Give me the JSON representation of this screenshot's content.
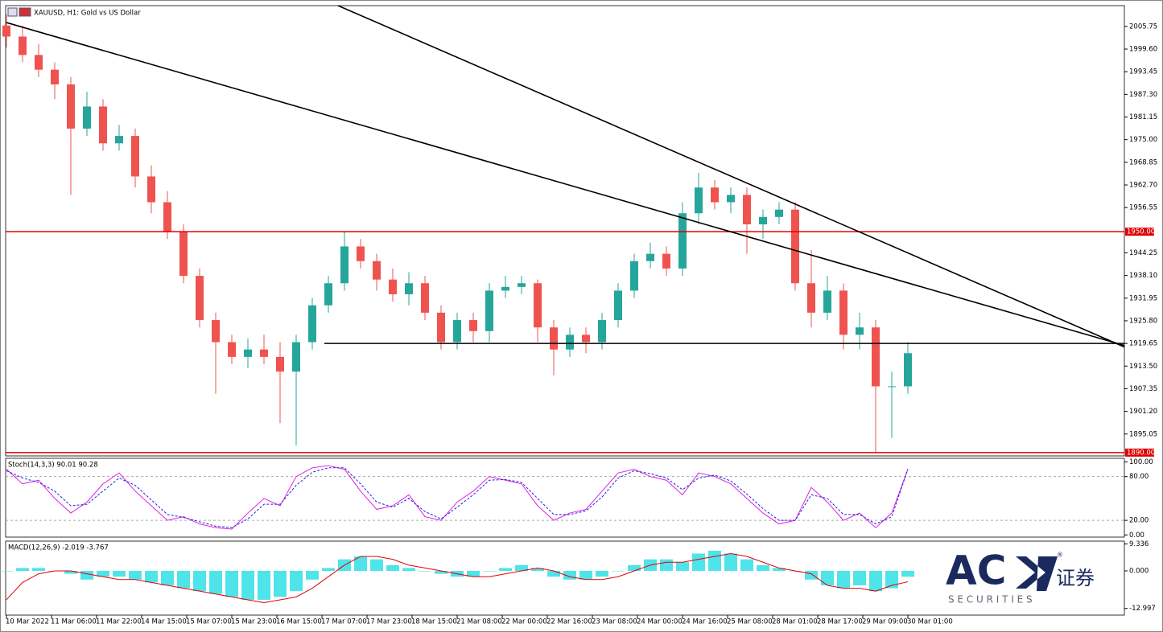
{
  "chart_data": [
    {
      "type": "candlestick",
      "title": "XAUUSD, H1:  Gold vs US Dollar",
      "xtick_labels": [
        "10 Mar 2022",
        "11 Mar 06:00",
        "11 Mar 22:00",
        "14 Mar 15:00",
        "15 Mar 07:00",
        "15 Mar 23:00",
        "16 Mar 15:00",
        "17 Mar 07:00",
        "17 Mar 23:00",
        "18 Mar 15:00",
        "21 Mar 08:00",
        "22 Mar 00:00",
        "22 Mar 16:00",
        "23 Mar 08:00",
        "24 Mar 00:00",
        "24 Mar 16:00",
        "25 Mar 08:00",
        "28 Mar 01:00",
        "28 Mar 17:00",
        "29 Mar 09:00",
        "30 Mar 01:00"
      ],
      "open": [
        2006,
        2003,
        1998,
        1994,
        1990,
        1978,
        1984,
        1974,
        1976,
        1965,
        1958,
        1950,
        1938,
        1926,
        1920,
        1916,
        1918,
        1916,
        1912,
        1920,
        1930,
        1936,
        1946,
        1942,
        1937,
        1933,
        1936,
        1928,
        1920,
        1926,
        1923,
        1934,
        1935,
        1936,
        1924,
        1918,
        1922,
        1920,
        1926,
        1934,
        1942,
        1944,
        1940,
        1955,
        1962,
        1958,
        1960,
        1952,
        1954,
        1956,
        1936,
        1928,
        1934,
        1922,
        1924,
        1908,
        1908
      ],
      "high": [
        2009,
        2006,
        2001,
        1996,
        1992,
        1988,
        1986,
        1979,
        1978,
        1968,
        1961,
        1952,
        1940,
        1928,
        1922,
        1921,
        1922,
        1920,
        1922,
        1932,
        1938,
        1950,
        1948,
        1944,
        1940,
        1939,
        1938,
        1930,
        1928,
        1928,
        1936,
        1938,
        1938,
        1937,
        1926,
        1924,
        1924,
        1928,
        1936,
        1944,
        1947,
        1946,
        1958,
        1966,
        1964,
        1962,
        1962,
        1956,
        1958,
        1958,
        1945,
        1938,
        1936,
        1928,
        1926,
        1912,
        1920
      ],
      "low": [
        2000,
        1996,
        1992,
        1986,
        1960,
        1976,
        1972,
        1972,
        1962,
        1955,
        1948,
        1936,
        1924,
        1906,
        1914,
        1913,
        1914,
        1898,
        1892,
        1918,
        1928,
        1934,
        1940,
        1934,
        1931,
        1930,
        1926,
        1918,
        1918,
        1920,
        1920,
        1932,
        1933,
        1920,
        1911,
        1916,
        1917,
        1918,
        1924,
        1932,
        1940,
        1938,
        1938,
        1952,
        1956,
        1955,
        1944,
        1948,
        1952,
        1934,
        1924,
        1926,
        1918,
        1918,
        1890,
        1894,
        1906
      ],
      "close": [
        2003,
        1998,
        1994,
        1990,
        1978,
        1984,
        1974,
        1976,
        1965,
        1958,
        1950,
        1938,
        1926,
        1920,
        1916,
        1918,
        1916,
        1912,
        1920,
        1930,
        1936,
        1946,
        1942,
        1937,
        1933,
        1936,
        1928,
        1920,
        1926,
        1923,
        1934,
        1935,
        1936,
        1924,
        1918,
        1922,
        1920,
        1926,
        1934,
        1942,
        1944,
        1940,
        1955,
        1962,
        1958,
        1960,
        1952,
        1954,
        1956,
        1936,
        1928,
        1934,
        1922,
        1924,
        1908,
        1908,
        1917
      ],
      "up_color": "#26a69a",
      "down_color": "#ef5350",
      "ylim": [
        1889.1,
        2011.4
      ],
      "yticks": [
        2005.75,
        {
          "value": 1999.6,
          "label": "1999.60"
        },
        1993.45,
        {
          "value": 1987.3,
          "label": "1987.30"
        },
        1981.15,
        {
          "value": 1975,
          "label": "1975.00"
        },
        1968.85,
        {
          "value": 1962.7,
          "label": "1962.70"
        },
        1956.55,
        1944.25,
        {
          "value": 1938.1,
          "label": "1938.10"
        },
        1931.95,
        {
          "value": 1925.8,
          "label": "1925.80"
        },
        1919.65,
        {
          "value": 1913.5,
          "label": "1913.50"
        },
        1907.35,
        {
          "value": 1901.2,
          "label": "1901.20"
        },
        1895.05
      ],
      "levels": [
        {
          "value": 1950,
          "label": "1950.00",
          "color": "#e00000"
        },
        {
          "value": 1890,
          "label": "1890.00",
          "color": "#e00000"
        }
      ],
      "trendlines": [
        {
          "x": [
            0,
            69.45
          ],
          "y": [
            2006.8,
            1919.1
          ],
          "color": "#000000"
        },
        {
          "x": [
            20.6,
            69.45
          ],
          "y": [
            2011.4,
            1918.7
          ],
          "color": "#000000"
        },
        {
          "x": [
            19.75,
            69.45
          ],
          "y": [
            1919.65,
            1919.65
          ],
          "color": "#000000"
        }
      ]
    },
    {
      "type": "line",
      "title": "Stoch(14,3,3) 90.01 90.28",
      "ylim": [
        -3,
        105
      ],
      "yticks": [
        {
          "value": 100,
          "label": "100.00"
        },
        {
          "value": 80,
          "label": "80.00",
          "level": true
        },
        {
          "value": 20,
          "label": "20.00",
          "level": true
        },
        {
          "value": 0,
          "label": "0.00"
        }
      ],
      "series": [
        {
          "color": "#e020e0",
          "dash": false,
          "values": [
            90,
            70,
            75,
            50,
            30,
            45,
            70,
            85,
            60,
            40,
            20,
            25,
            15,
            10,
            8,
            30,
            50,
            40,
            80,
            92,
            95,
            90,
            60,
            35,
            40,
            55,
            25,
            20,
            45,
            60,
            80,
            75,
            70,
            40,
            20,
            30,
            35,
            60,
            85,
            90,
            80,
            75,
            55,
            85,
            80,
            70,
            50,
            30,
            15,
            20,
            65,
            45,
            20,
            30,
            10,
            30,
            90.01
          ]
        },
        {
          "color": "#2020e0",
          "dash": true,
          "values": [
            88,
            78,
            72,
            60,
            40,
            42,
            60,
            78,
            68,
            48,
            28,
            24,
            18,
            12,
            10,
            22,
            42,
            42,
            68,
            86,
            92,
            92,
            70,
            45,
            38,
            50,
            32,
            22,
            38,
            55,
            75,
            76,
            72,
            50,
            28,
            28,
            33,
            52,
            78,
            88,
            84,
            78,
            62,
            78,
            82,
            74,
            56,
            36,
            20,
            20,
            55,
            50,
            28,
            28,
            15,
            25,
            90.28
          ]
        }
      ]
    },
    {
      "type": "combo",
      "title": "MACD(12,26,9) -2.019 -3.767",
      "ylim": [
        -15.3,
        10.3
      ],
      "yticks": [
        9.336,
        {
          "value": 0,
          "label": "0.000"
        },
        -12.997
      ],
      "series": [
        {
          "type": "bar",
          "color": "#4fe3ea",
          "values": [
            0,
            1,
            1,
            0,
            -1,
            -3,
            -2,
            -2,
            -3,
            -4,
            -5,
            -6,
            -7,
            -8,
            -9,
            -10,
            -10,
            -9,
            -7,
            -3,
            1,
            4,
            5,
            4,
            2,
            1,
            0,
            -1,
            -2,
            -2,
            0,
            1,
            2,
            1,
            -2,
            -3,
            -3,
            -2,
            0,
            2,
            4,
            4,
            3,
            6,
            7,
            6,
            4,
            2,
            1,
            0,
            -3,
            -5,
            -6,
            -5,
            -7,
            -6,
            -2.019
          ]
        },
        {
          "type": "line",
          "color": "#e00000",
          "values": [
            -10,
            -4,
            -1,
            0,
            0,
            -1,
            -2,
            -3,
            -3,
            -4,
            -5,
            -6,
            -7,
            -8,
            -9,
            -10,
            -11,
            -10,
            -9,
            -6,
            -2,
            2,
            5,
            5,
            4,
            2,
            1,
            0,
            -1,
            -2,
            -2,
            -1,
            0,
            1,
            0,
            -2,
            -3,
            -3,
            -2,
            0,
            2,
            3,
            3,
            4,
            5,
            6,
            5,
            3,
            1,
            0,
            -1,
            -5,
            -6,
            -6,
            -7,
            -5,
            -3.767
          ]
        }
      ]
    }
  ],
  "logo": {
    "brand": "AC",
    "cn": "证券",
    "sub": "S E C U R I T I E S"
  }
}
